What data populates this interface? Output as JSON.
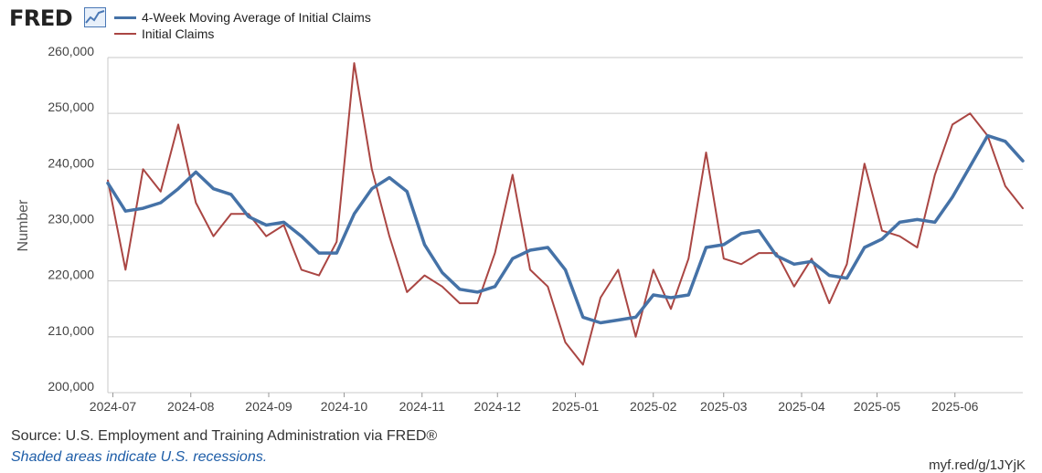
{
  "header": {
    "logo_text": "FRED",
    "logo_icon": "fred-chart-icon"
  },
  "footer": {
    "source": "Source: U.S. Employment and Training Administration via FRED®",
    "recession_note": "Shaded areas indicate U.S. recessions.",
    "short_url": "myf.red/g/1JYjK"
  },
  "chart_data": {
    "type": "line",
    "title": "",
    "xlabel": "",
    "ylabel": "Number",
    "ylim": [
      200000,
      260000
    ],
    "yticks": [
      200000,
      210000,
      220000,
      230000,
      240000,
      250000,
      260000
    ],
    "ytick_labels": [
      "200,000",
      "210,000",
      "220,000",
      "230,000",
      "240,000",
      "250,000",
      "260,000"
    ],
    "xlim": [
      "2024-06-29",
      "2025-06-28"
    ],
    "xticks": [
      "2024-07-01",
      "2024-08-01",
      "2024-09-01",
      "2024-10-01",
      "2024-11-01",
      "2024-12-01",
      "2025-01-01",
      "2025-02-01",
      "2025-03-01",
      "2025-04-01",
      "2025-05-01",
      "2025-06-01"
    ],
    "xtick_labels": [
      "2024-07",
      "2024-08",
      "2024-09",
      "2024-10",
      "2024-11",
      "2024-12",
      "2025-01",
      "2025-02",
      "2025-03",
      "2025-04",
      "2025-05",
      "2025-06"
    ],
    "grid": true,
    "legend_position": "top-left",
    "x": [
      "2024-06-29",
      "2024-07-06",
      "2024-07-13",
      "2024-07-20",
      "2024-07-27",
      "2024-08-03",
      "2024-08-10",
      "2024-08-17",
      "2024-08-24",
      "2024-08-31",
      "2024-09-07",
      "2024-09-14",
      "2024-09-21",
      "2024-09-28",
      "2024-10-05",
      "2024-10-12",
      "2024-10-19",
      "2024-10-26",
      "2024-11-02",
      "2024-11-09",
      "2024-11-16",
      "2024-11-23",
      "2024-11-30",
      "2024-12-07",
      "2024-12-14",
      "2024-12-21",
      "2024-12-28",
      "2025-01-04",
      "2025-01-11",
      "2025-01-18",
      "2025-01-25",
      "2025-02-01",
      "2025-02-08",
      "2025-02-15",
      "2025-02-22",
      "2025-03-01",
      "2025-03-08",
      "2025-03-15",
      "2025-03-22",
      "2025-03-29",
      "2025-04-05",
      "2025-04-12",
      "2025-04-19",
      "2025-04-26",
      "2025-05-03",
      "2025-05-10",
      "2025-05-17",
      "2025-05-24",
      "2025-05-31",
      "2025-06-07",
      "2025-06-14",
      "2025-06-21",
      "2025-06-28"
    ],
    "series": [
      {
        "name": "4-Week Moving Average of Initial Claims",
        "color": "#4572a7",
        "width": 3.5,
        "values": [
          237500,
          232500,
          233000,
          234000,
          236500,
          239500,
          236500,
          235500,
          231500,
          230000,
          230500,
          228000,
          225000,
          225000,
          232000,
          236500,
          238500,
          236000,
          226500,
          221500,
          218500,
          218000,
          219000,
          224000,
          225500,
          226000,
          222000,
          213500,
          212500,
          213000,
          213500,
          217500,
          217000,
          217500,
          226000,
          226500,
          228500,
          229000,
          224500,
          223000,
          223500,
          221000,
          220500,
          226000,
          227500,
          230500,
          231000,
          230500,
          235000,
          240500,
          246000,
          245000,
          241500
        ]
      },
      {
        "name": "Initial Claims",
        "color": "#aa4643",
        "width": 2,
        "values": [
          238000,
          222000,
          240000,
          236000,
          248000,
          234000,
          228000,
          232000,
          232000,
          228000,
          230000,
          222000,
          221000,
          227000,
          259000,
          240000,
          228000,
          218000,
          221000,
          219000,
          216000,
          216000,
          225000,
          239000,
          222000,
          219000,
          209000,
          205000,
          217000,
          222000,
          210000,
          222000,
          215000,
          224000,
          243000,
          224000,
          223000,
          225000,
          225000,
          219000,
          224000,
          216000,
          223000,
          241000,
          229000,
          228000,
          226000,
          239000,
          248000,
          250000,
          246000,
          237000,
          233000
        ]
      }
    ]
  }
}
